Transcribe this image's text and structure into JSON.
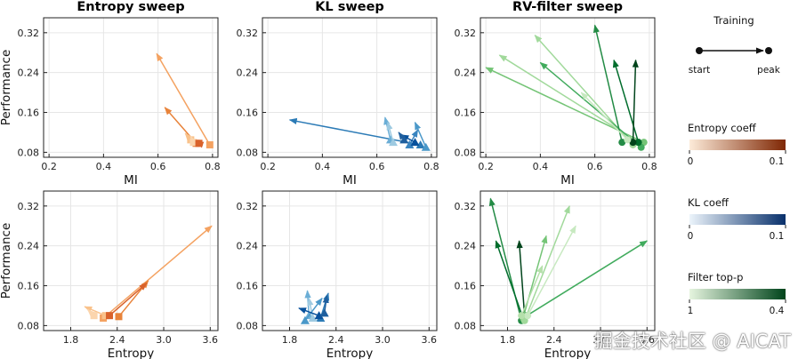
{
  "legend": {
    "training": {
      "title": "Training",
      "start": "start",
      "peak": "peak"
    },
    "colorbars": [
      {
        "title": "Entropy coeff",
        "min": "0",
        "max": "0.1",
        "from": "#fdebd9",
        "to": "#7f2704"
      },
      {
        "title": "KL coeff",
        "min": "0",
        "max": "0.1",
        "from": "#ecf4fb",
        "to": "#08306b"
      },
      {
        "title": "Filter top-p",
        "min": "1",
        "max": "0.4",
        "from": "#e6f5df",
        "to": "#00441b"
      }
    ]
  },
  "watermark": "掘金技术社区 @ AICAT",
  "chart_data": [
    {
      "type": "scatter",
      "title": "Entropy sweep",
      "xlabel": "MI",
      "ylabel": "Performance",
      "xlim": [
        0.18,
        0.82
      ],
      "ylim": [
        0.07,
        0.35
      ],
      "xticks": [
        "0.2",
        "0.4",
        "0.6",
        "0.8"
      ],
      "yticks": [
        "0.08",
        "0.16",
        "0.24",
        "0.32"
      ],
      "marker": "square",
      "series": [
        {
          "color": "#f4a261",
          "start": [
            0.79,
            0.095
          ],
          "peak": [
            0.595,
            0.278
          ]
        },
        {
          "color": "#e8833a",
          "start": [
            0.74,
            0.098
          ],
          "peak": [
            0.625,
            0.17
          ]
        },
        {
          "color": "#f9c28b",
          "start": [
            0.72,
            0.105
          ],
          "peak": [
            0.7,
            0.118
          ]
        },
        {
          "color": "#fbd5ad",
          "start": [
            0.73,
            0.1
          ],
          "peak": [
            0.72,
            0.112
          ]
        },
        {
          "color": "#d9622b",
          "start": [
            0.75,
            0.098
          ],
          "peak": [
            0.74,
            0.1
          ]
        }
      ]
    },
    {
      "type": "scatter",
      "title": "KL sweep",
      "xlabel": "MI",
      "ylabel": "",
      "xlim": [
        0.18,
        0.82
      ],
      "ylim": [
        0.07,
        0.35
      ],
      "xticks": [
        "0.2",
        "0.4",
        "0.6",
        "0.8"
      ],
      "yticks": [
        "0.08",
        "0.16",
        "0.24",
        "0.32"
      ],
      "marker": "triangle",
      "series": [
        {
          "color": "#2c7bb6",
          "start": [
            0.76,
            0.095
          ],
          "peak": [
            0.28,
            0.145
          ]
        },
        {
          "color": "#6baed6",
          "start": [
            0.65,
            0.105
          ],
          "peak": [
            0.63,
            0.15
          ]
        },
        {
          "color": "#9ecae1",
          "start": [
            0.66,
            0.1
          ],
          "peak": [
            0.64,
            0.14
          ]
        },
        {
          "color": "#4a98c9",
          "start": [
            0.78,
            0.09
          ],
          "peak": [
            0.74,
            0.14
          ]
        },
        {
          "color": "#3a85c0",
          "start": [
            0.72,
            0.095
          ],
          "peak": [
            0.75,
            0.125
          ]
        },
        {
          "color": "#08519c",
          "start": [
            0.74,
            0.1
          ],
          "peak": [
            0.69,
            0.115
          ]
        },
        {
          "color": "#1f5f9e",
          "start": [
            0.7,
            0.105
          ],
          "peak": [
            0.68,
            0.12
          ]
        }
      ]
    },
    {
      "type": "scatter",
      "title": "RV-filter sweep",
      "xlabel": "MI",
      "ylabel": "",
      "xlim": [
        0.18,
        0.82
      ],
      "ylim": [
        0.07,
        0.35
      ],
      "xticks": [
        "0.2",
        "0.4",
        "0.6",
        "0.8"
      ],
      "yticks": [
        "0.08",
        "0.16",
        "0.24",
        "0.32"
      ],
      "marker": "circle",
      "series": [
        {
          "color": "#74c476",
          "start": [
            0.78,
            0.1
          ],
          "peak": [
            0.2,
            0.25
          ]
        },
        {
          "color": "#a1d99b",
          "start": [
            0.76,
            0.1
          ],
          "peak": [
            0.25,
            0.275
          ]
        },
        {
          "color": "#a1d99b",
          "start": [
            0.74,
            0.095
          ],
          "peak": [
            0.38,
            0.315
          ]
        },
        {
          "color": "#41ab5d",
          "start": [
            0.77,
            0.09
          ],
          "peak": [
            0.4,
            0.26
          ]
        },
        {
          "color": "#238b45",
          "start": [
            0.7,
            0.1
          ],
          "peak": [
            0.6,
            0.335
          ]
        },
        {
          "color": "#006d2c",
          "start": [
            0.76,
            0.1
          ],
          "peak": [
            0.67,
            0.265
          ]
        },
        {
          "color": "#00441b",
          "start": [
            0.74,
            0.1
          ],
          "peak": [
            0.75,
            0.265
          ]
        },
        {
          "color": "#c7e9c0",
          "start": [
            0.72,
            0.105
          ],
          "peak": [
            0.55,
            0.2
          ]
        }
      ]
    },
    {
      "type": "scatter",
      "title": "",
      "xlabel": "Entropy",
      "ylabel": "Performance",
      "xlim": [
        1.45,
        3.7
      ],
      "ylim": [
        0.07,
        0.35
      ],
      "xticks": [
        "1.8",
        "2.4",
        "3.0",
        "3.6"
      ],
      "yticks": [
        "0.08",
        "0.16",
        "0.24",
        "0.32"
      ],
      "marker": "square",
      "series": [
        {
          "color": "#f4a261",
          "start": [
            2.22,
            0.095
          ],
          "peak": [
            3.62,
            0.28
          ]
        },
        {
          "color": "#e8833a",
          "start": [
            2.42,
            0.098
          ],
          "peak": [
            2.8,
            0.17
          ]
        },
        {
          "color": "#f9c28b",
          "start": [
            2.25,
            0.1
          ],
          "peak": [
            1.98,
            0.118
          ]
        },
        {
          "color": "#fbd5ad",
          "start": [
            2.1,
            0.1
          ],
          "peak": [
            2.02,
            0.112
          ]
        },
        {
          "color": "#d9622b",
          "start": [
            2.3,
            0.1
          ],
          "peak": [
            2.78,
            0.165
          ]
        }
      ]
    },
    {
      "type": "scatter",
      "title": "",
      "xlabel": "Entropy",
      "ylabel": "",
      "xlim": [
        1.45,
        3.7
      ],
      "ylim": [
        0.07,
        0.35
      ],
      "xticks": [
        "1.8",
        "2.4",
        "3.0",
        "3.6"
      ],
      "yticks": [
        "0.08",
        "0.16",
        "0.24",
        "0.32"
      ],
      "marker": "triangle",
      "series": [
        {
          "color": "#2c7bb6",
          "start": [
            2.2,
            0.095
          ],
          "peak": [
            2.3,
            0.145
          ]
        },
        {
          "color": "#6baed6",
          "start": [
            2.05,
            0.1
          ],
          "peak": [
            2.03,
            0.15
          ]
        },
        {
          "color": "#9ecae1",
          "start": [
            2.1,
            0.095
          ],
          "peak": [
            2.05,
            0.135
          ]
        },
        {
          "color": "#4a98c9",
          "start": [
            2.0,
            0.09
          ],
          "peak": [
            2.22,
            0.135
          ]
        },
        {
          "color": "#08519c",
          "start": [
            2.18,
            0.1
          ],
          "peak": [
            1.92,
            0.115
          ]
        },
        {
          "color": "#1f5f9e",
          "start": [
            2.25,
            0.105
          ],
          "peak": [
            2.28,
            0.14
          ]
        }
      ]
    },
    {
      "type": "scatter",
      "title": "",
      "xlabel": "Entropy",
      "ylabel": "",
      "xlim": [
        1.45,
        3.7
      ],
      "ylim": [
        0.07,
        0.35
      ],
      "xticks": [
        "1.8",
        "2.4",
        "3.0",
        "3.6"
      ],
      "yticks": [
        "0.08",
        "0.16",
        "0.24",
        "0.32"
      ],
      "marker": "circle",
      "series": [
        {
          "color": "#238b45",
          "start": [
            1.98,
            0.09
          ],
          "peak": [
            1.58,
            0.335
          ]
        },
        {
          "color": "#006d2c",
          "start": [
            2.0,
            0.095
          ],
          "peak": [
            1.65,
            0.25
          ]
        },
        {
          "color": "#00441b",
          "start": [
            2.02,
            0.1
          ],
          "peak": [
            1.95,
            0.25
          ]
        },
        {
          "color": "#41ab5d",
          "start": [
            2.05,
            0.1
          ],
          "peak": [
            3.6,
            0.25
          ]
        },
        {
          "color": "#74c476",
          "start": [
            2.0,
            0.095
          ],
          "peak": [
            2.3,
            0.26
          ]
        },
        {
          "color": "#a1d99b",
          "start": [
            2.02,
            0.09
          ],
          "peak": [
            2.6,
            0.32
          ]
        },
        {
          "color": "#c7e9c0",
          "start": [
            2.06,
            0.1
          ],
          "peak": [
            2.68,
            0.28
          ]
        },
        {
          "color": "#b5e0ab",
          "start": [
            1.98,
            0.1
          ],
          "peak": [
            2.25,
            0.2
          ]
        }
      ]
    }
  ]
}
